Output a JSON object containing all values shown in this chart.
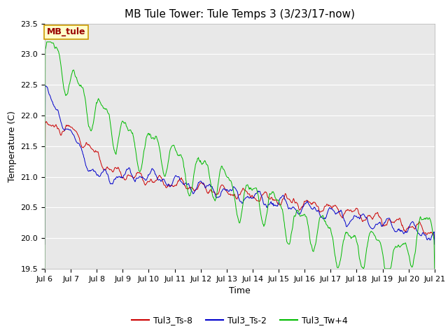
{
  "title": "MB Tule Tower: Tule Temps 3 (3/23/17-now)",
  "xlabel": "Time",
  "ylabel": "Temperature (C)",
  "ylim": [
    19.5,
    23.5
  ],
  "xlim": [
    0,
    15
  ],
  "x_tick_labels": [
    "Jul 6",
    "Jul 7",
    "Jul 8",
    "Jul 9",
    "Jul 10",
    "Jul 11",
    "Jul 12",
    "Jul 13",
    "Jul 14",
    "Jul 15",
    "Jul 16",
    "Jul 17",
    "Jul 18",
    "Jul 19",
    "Jul 20",
    "Jul 21"
  ],
  "x_tick_positions": [
    0,
    1,
    2,
    3,
    4,
    5,
    6,
    7,
    8,
    9,
    10,
    11,
    12,
    13,
    14,
    15
  ],
  "y_ticks": [
    19.5,
    20.0,
    20.5,
    21.0,
    21.5,
    22.0,
    22.5,
    23.0,
    23.5
  ],
  "bg_color": "#e8e8e8",
  "line_red": "#cc0000",
  "line_blue": "#0000cc",
  "line_green": "#00bb00",
  "legend_label_red": "Tul3_Ts-8",
  "legend_label_blue": "Tul3_Ts-2",
  "legend_label_green": "Tul3_Tw+4",
  "annotation_text": "MB_tule",
  "annotation_bg": "#ffffcc",
  "annotation_border": "#cc9900",
  "annotation_text_color": "#990000",
  "title_fontsize": 11,
  "axis_fontsize": 9,
  "tick_fontsize": 8,
  "legend_fontsize": 9
}
